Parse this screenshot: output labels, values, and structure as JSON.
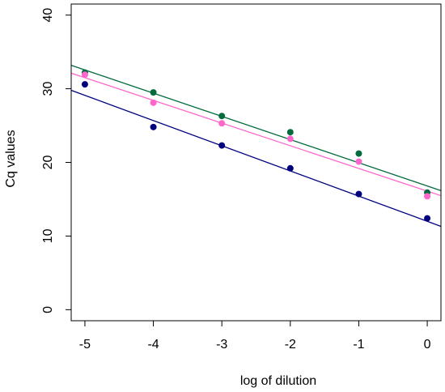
{
  "chart_data": {
    "type": "scatter",
    "title": "",
    "xlabel": "log of dilution",
    "ylabel": "Cq values",
    "xlim": [
      -5.2,
      0.2
    ],
    "ylim": [
      -1.5,
      41.5
    ],
    "xticks": [
      "-5",
      "-4",
      "-3",
      "-2",
      "-1",
      "0"
    ],
    "yticks": [
      "0",
      "10",
      "20",
      "30",
      "40"
    ],
    "grid": false,
    "legend": "none",
    "series": [
      {
        "color": "#006b3c",
        "x": [
          -5,
          -4,
          -3,
          -2,
          -1,
          0
        ],
        "y": [
          32.2,
          29.5,
          26.3,
          24.1,
          21.2,
          15.9
        ],
        "fit": {
          "slope": -3.15,
          "intercept": 16.8
        }
      },
      {
        "color": "#ff66cc",
        "x": [
          -5,
          -4,
          -3,
          -2,
          -1,
          0
        ],
        "y": [
          31.9,
          28.1,
          25.3,
          23.2,
          20.1,
          15.4
        ],
        "fit": {
          "slope": -3.08,
          "intercept": 16.1
        }
      },
      {
        "color": "#00007f",
        "x": [
          -5,
          -4,
          -3,
          -2,
          -1,
          0
        ],
        "y": [
          30.6,
          24.8,
          22.3,
          19.2,
          15.7,
          12.4
        ],
        "fit": {
          "slope": -3.42,
          "intercept": 12.0
        }
      }
    ]
  }
}
